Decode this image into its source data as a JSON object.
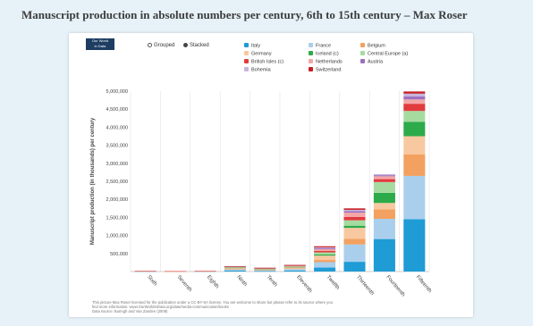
{
  "title": "Manuscript production in absolute numbers per century, 6th to 15th century – Max Roser",
  "logo": {
    "line1": "Our World",
    "line2": "in Data"
  },
  "toggle": {
    "grouped": "Grouped",
    "stacked": "Stacked",
    "selected": "Stacked"
  },
  "footer": {
    "line1": "This picture Max Roser licensed for the publication under a CC-BY-SA license. You are welcome to share but please refer to its source where you",
    "line2": "find more information: www.OurWorldInData.org/data/media-communication/books",
    "line3": "Data source: Buringh and Van Zanden (2009)"
  },
  "chart_data": {
    "type": "bar",
    "stacked": true,
    "title": "Manuscript production in absolute numbers per century, 6th to 15th century – Max Roser",
    "xlabel": "",
    "ylabel": "Manuscript production (in thousands) per century",
    "ylim": [
      0,
      5000000
    ],
    "yticks": [
      500000,
      1000000,
      1500000,
      2000000,
      2500000,
      3000000,
      3500000,
      4000000,
      4500000,
      5000000
    ],
    "ytick_labels": [
      "500,000",
      "1,000,000",
      "1,500,000",
      "2,000,000",
      "2,500,000",
      "3,000,000",
      "3,500,000",
      "4,000,000",
      "4,500,000",
      "5,000,000"
    ],
    "grid": true,
    "legend_position": "top",
    "categories": [
      "Sixth",
      "Seventh",
      "Eighth",
      "Ninth",
      "Tenth",
      "Eleventh",
      "Twelfth",
      "Thirteenth",
      "Fourteenth",
      "Fifteenth"
    ],
    "series": [
      {
        "name": "Italy",
        "color": "#1f9bd6",
        "values": [
          7000,
          4000,
          6000,
          24000,
          12000,
          30000,
          110000,
          270000,
          900000,
          1450000
        ]
      },
      {
        "name": "France",
        "color": "#a9cfec",
        "values": [
          5000,
          3000,
          4000,
          40000,
          25000,
          40000,
          150000,
          480000,
          560000,
          1200000
        ]
      },
      {
        "name": "Belgium",
        "color": "#f3a160",
        "values": [
          1000,
          1000,
          2000,
          8000,
          8000,
          15000,
          60000,
          160000,
          260000,
          600000
        ]
      },
      {
        "name": "Germany",
        "color": "#f8c8a0",
        "values": [
          1000,
          1000,
          2000,
          30000,
          25000,
          40000,
          120000,
          300000,
          180000,
          500000
        ]
      },
      {
        "name": "Iceland (c)",
        "color": "#2daa4a",
        "values": [
          0,
          0,
          0,
          8000,
          5000,
          6000,
          30000,
          60000,
          280000,
          400000
        ]
      },
      {
        "name": "Central Europe (a)",
        "color": "#a6dba0",
        "values": [
          0,
          0,
          0,
          10000,
          8000,
          12000,
          60000,
          150000,
          300000,
          300000
        ]
      },
      {
        "name": "British Isles (c)",
        "color": "#e13b3e",
        "values": [
          2000,
          2000,
          3000,
          15000,
          10000,
          20000,
          40000,
          90000,
          80000,
          200000
        ]
      },
      {
        "name": "Netherlands",
        "color": "#f4a7a6",
        "values": [
          0,
          0,
          0,
          5000,
          5000,
          8000,
          50000,
          120000,
          80000,
          120000
        ]
      },
      {
        "name": "Austria",
        "color": "#9b6fbf",
        "values": [
          0,
          0,
          0,
          4000,
          3000,
          5000,
          30000,
          40000,
          30000,
          80000
        ]
      },
      {
        "name": "Bohemia",
        "color": "#c8b3dc",
        "values": [
          0,
          0,
          0,
          2000,
          2000,
          3000,
          20000,
          40000,
          30000,
          80000
        ]
      },
      {
        "name": "Switzerland",
        "color": "#c52026",
        "values": [
          0,
          0,
          0,
          4000,
          2000,
          4000,
          30000,
          40000,
          0,
          60000
        ]
      }
    ]
  }
}
